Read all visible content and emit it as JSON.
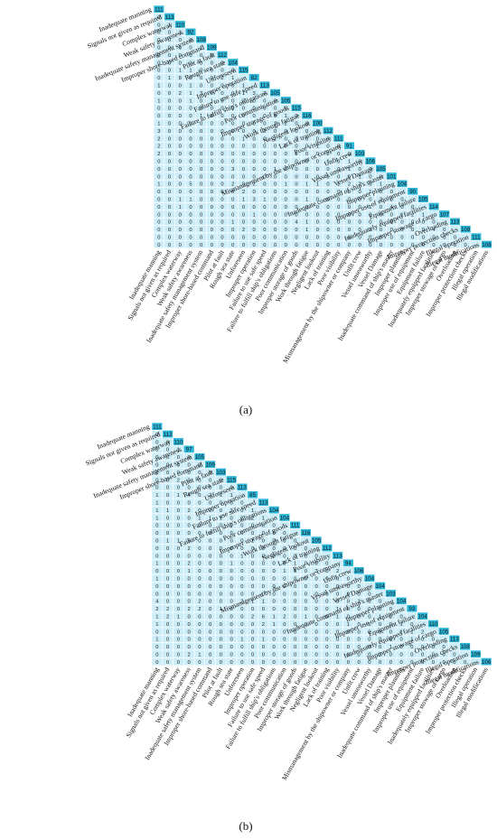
{
  "chart_data": [
    {
      "type": "heatmap",
      "panel_label": "(a)",
      "labels": [
        "Inadequate manning",
        "Signals not given as required",
        "Complex waterway",
        "Weak safety awareness",
        "Inadequate safety management system",
        "Improper shore-based command",
        "Pilot at fault",
        "Rough sea state",
        "Unforeseen",
        "Improper operation",
        "Failure to use safe speed",
        "Failure to fulfill ship's obligations",
        "Poor communication",
        "Improper storage of goods",
        "Work through fatigue",
        "Negligent lookout",
        "Lack of training",
        "Poor visibility",
        "Mismanagement by the shipowner or company",
        "Unfit crew",
        "Vessel unseaworthy",
        "Vessel Damage",
        "Inadequate command of ship's master",
        "Improper planning",
        "Improper use of equipment",
        "Equipment failure",
        "Inadequately equipped facilities",
        "Improper stowage of cargo",
        "Overloading",
        "Improper protection checks",
        "Illegal operation",
        "Illegal modifications"
      ],
      "diagonal": [
        111,
        113,
        110,
        92,
        108,
        109,
        112,
        104,
        115,
        82,
        113,
        105,
        105,
        115,
        116,
        100,
        112,
        111,
        91,
        103,
        106,
        105,
        101,
        104,
        90,
        105,
        114,
        107,
        113,
        109,
        111,
        108
      ],
      "rows": [
        [],
        [
          0
        ],
        [
          0,
          1
        ],
        [
          0,
          0,
          1
        ],
        [
          0,
          0,
          0,
          0
        ],
        [
          0,
          0,
          0,
          0,
          1
        ],
        [
          0,
          0,
          0,
          0,
          0,
          0
        ],
        [
          0,
          0,
          0,
          0,
          0,
          0,
          0
        ],
        [
          0,
          0,
          1,
          1,
          0,
          0,
          0,
          0
        ],
        [
          0,
          1,
          8,
          0,
          0,
          0,
          2,
          1
        ],
        [
          1,
          0,
          0,
          1,
          0,
          0,
          0,
          0,
          1
        ],
        [
          0,
          0,
          2,
          1,
          3,
          0,
          0,
          0,
          1,
          3,
          2
        ],
        [
          1,
          0,
          0,
          1,
          0,
          1,
          0,
          0,
          2,
          0,
          0,
          0
        ],
        [
          0,
          0,
          0,
          0,
          0,
          0,
          0,
          0,
          0,
          0,
          0,
          0,
          0
        ],
        [
          0,
          0,
          0,
          0,
          1,
          0,
          0,
          0,
          0,
          0,
          0,
          0,
          1,
          0
        ],
        [
          1,
          0,
          0,
          0,
          0,
          0,
          0,
          0,
          0,
          0,
          0,
          1,
          2,
          0,
          0
        ],
        [
          3,
          0,
          0,
          0,
          0,
          0,
          0,
          0,
          0,
          0,
          2,
          0,
          0,
          0,
          0,
          0
        ],
        [
          2,
          0,
          0,
          0,
          0,
          0,
          0,
          0,
          1,
          0,
          0,
          1,
          0,
          0,
          0,
          0,
          0
        ],
        [
          2,
          0,
          0,
          0,
          0,
          0,
          0,
          0,
          0,
          0,
          0,
          0,
          0,
          0,
          0,
          1,
          0,
          0
        ],
        [
          2,
          0,
          0,
          0,
          0,
          0,
          0,
          0,
          0,
          0,
          0,
          0,
          0,
          0,
          0,
          0,
          2,
          0,
          0
        ],
        [
          0,
          0,
          0,
          0,
          0,
          0,
          0,
          0,
          0,
          0,
          0,
          0,
          0,
          0,
          0,
          0,
          1,
          0,
          1,
          0
        ],
        [
          0,
          0,
          0,
          0,
          0,
          0,
          0,
          3,
          0,
          0,
          0,
          1,
          0,
          0,
          0,
          0,
          0,
          0,
          1,
          0,
          0
        ],
        [
          0,
          0,
          0,
          0,
          0,
          0,
          0,
          0,
          0,
          0,
          0,
          0,
          0,
          0,
          0,
          0,
          0,
          0,
          0,
          1,
          0,
          0
        ],
        [
          1,
          0,
          0,
          5,
          0,
          0,
          0,
          2,
          0,
          2,
          0,
          0,
          1,
          0,
          1,
          1,
          0,
          1,
          2,
          2,
          0,
          1
        ],
        [
          0,
          0,
          0,
          0,
          0,
          0,
          0,
          0,
          2,
          0,
          0,
          0,
          0,
          0,
          0,
          0,
          0,
          0,
          0,
          0,
          1,
          0,
          0
        ],
        [
          0,
          0,
          1,
          1,
          0,
          0,
          0,
          0,
          1,
          3,
          1,
          0,
          0,
          0,
          1,
          0,
          0,
          0,
          0,
          0,
          0,
          2,
          0,
          0
        ],
        [
          0,
          0,
          1,
          0,
          0,
          0,
          0,
          0,
          0,
          0,
          0,
          0,
          0,
          0,
          0,
          0,
          0,
          0,
          0,
          0,
          1,
          0,
          4,
          0,
          0
        ],
        [
          0,
          0,
          0,
          0,
          0,
          0,
          0,
          0,
          0,
          1,
          0,
          0,
          0,
          0,
          0,
          0,
          0,
          0,
          0,
          0,
          0,
          0,
          0,
          1,
          2,
          1
        ],
        [
          0,
          0,
          0,
          0,
          0,
          0,
          0,
          1,
          0,
          0,
          0,
          0,
          0,
          4,
          1,
          0,
          0,
          0,
          0,
          0,
          0,
          0,
          0,
          0,
          0,
          0,
          0
        ],
        [
          0,
          0,
          0,
          0,
          0,
          0,
          0,
          0,
          2,
          0,
          0,
          0,
          0,
          0,
          1,
          0,
          0,
          0,
          0,
          0,
          1,
          0,
          0,
          0,
          0,
          0,
          4,
          0
        ],
        [
          0,
          0,
          0,
          0,
          0,
          0,
          0,
          0,
          0,
          0,
          0,
          0,
          0,
          0,
          0,
          0,
          0,
          0,
          0,
          0,
          0,
          0,
          0,
          0,
          0,
          0,
          0,
          0,
          0
        ],
        [
          0,
          0,
          0,
          0,
          0,
          0,
          0,
          0,
          0,
          0,
          0,
          0,
          0,
          0,
          0,
          0,
          0,
          0,
          0,
          0,
          0,
          0,
          0,
          0,
          0,
          0,
          0,
          0,
          0,
          0
        ],
        [
          0,
          2,
          0,
          0,
          0,
          0,
          0,
          0,
          0,
          0,
          0,
          0,
          0,
          0,
          0,
          0,
          0,
          0,
          0,
          0,
          0,
          0,
          0,
          0,
          0,
          0,
          0,
          0,
          0,
          0,
          2
        ]
      ]
    },
    {
      "type": "heatmap",
      "panel_label": "(b)",
      "labels": [
        "Inadequate manning",
        "Signals not given as required",
        "Complex waterway",
        "Weak safety awareness",
        "Inadequate safety management system",
        "Improper shore-based command",
        "Pilot at fault",
        "Rough sea state",
        "Unforeseen",
        "Improper operation",
        "Failure to use safe speed",
        "Failure to fulfill ship's obligations",
        "Poor communication",
        "Improper storage of goods",
        "Work through fatigue",
        "Negligent lookout",
        "Lack of training",
        "Poor visibility",
        "Mismanagement by the shipowner or company",
        "Unfit crew",
        "Vessel unseaworthy",
        "Vessel Damage",
        "Inadequate command of ship's master",
        "Improper planning",
        "Improper use of equipment",
        "Equipment failure",
        "Inadequately equipped facilities",
        "Improper stowage of cargo",
        "Overloading",
        "Improper protection checks",
        "Illegal operation",
        "Illegal modifications"
      ],
      "diagonal": [
        111,
        112,
        110,
        97,
        105,
        109,
        103,
        115,
        113,
        85,
        113,
        104,
        104,
        111,
        116,
        105,
        112,
        113,
        94,
        106,
        104,
        104,
        103,
        104,
        93,
        104,
        110,
        105,
        113,
        108,
        109,
        106
      ],
      "rows": [
        [],
        [
          0
        ],
        [
          0,
          0
        ],
        [
          0,
          0,
          1
        ],
        [
          0,
          0,
          0,
          0
        ],
        [
          0,
          0,
          0,
          0,
          0
        ],
        [
          1,
          0,
          0,
          0,
          0,
          0
        ],
        [
          0,
          0,
          2,
          0,
          0,
          0,
          0
        ],
        [
          0,
          0,
          0,
          0,
          0,
          0,
          0,
          0
        ],
        [
          1,
          0,
          1,
          4,
          0,
          2,
          1,
          1
        ],
        [
          1,
          0,
          0,
          0,
          0,
          0,
          0,
          0,
          0
        ],
        [
          1,
          1,
          0,
          2,
          0,
          0,
          0,
          2,
          0,
          1
        ],
        [
          1,
          0,
          0,
          0,
          1,
          1,
          1,
          0,
          2,
          2,
          1
        ],
        [
          0,
          0,
          0,
          0,
          0,
          0,
          0,
          0,
          0,
          0,
          0,
          0
        ],
        [
          0,
          0,
          0,
          0,
          0,
          0,
          0,
          0,
          0,
          0,
          0,
          0,
          0
        ],
        [
          0,
          1,
          1,
          5,
          0,
          0,
          0,
          0,
          0,
          1,
          0,
          0,
          0,
          0
        ],
        [
          0,
          0,
          0,
          2,
          0,
          0,
          0,
          0,
          0,
          0,
          0,
          0,
          0,
          0,
          0
        ],
        [
          0,
          0,
          0,
          0,
          0,
          0,
          0,
          0,
          1,
          0,
          0,
          0,
          0,
          0,
          0,
          0
        ],
        [
          1,
          0,
          0,
          2,
          0,
          0,
          0,
          1,
          0,
          0,
          0,
          0,
          0,
          1,
          0,
          0,
          0
        ],
        [
          0,
          0,
          0,
          1,
          0,
          0,
          0,
          0,
          0,
          0,
          0,
          0,
          1,
          0,
          0,
          3,
          0,
          2
        ],
        [
          1,
          0,
          0,
          0,
          0,
          0,
          0,
          0,
          0,
          0,
          0,
          0,
          0,
          0,
          0,
          0,
          0,
          0,
          0
        ],
        [
          0,
          0,
          0,
          0,
          0,
          0,
          0,
          0,
          0,
          0,
          0,
          0,
          0,
          0,
          0,
          0,
          0,
          0,
          0,
          0
        ],
        [
          0,
          0,
          0,
          0,
          0,
          0,
          0,
          0,
          0,
          0,
          0,
          0,
          0,
          0,
          0,
          0,
          0,
          0,
          0,
          0,
          0
        ],
        [
          4,
          0,
          0,
          0,
          2,
          0,
          0,
          0,
          2,
          1,
          1,
          0,
          0,
          0,
          0,
          0,
          0,
          0,
          0,
          1,
          0,
          0
        ],
        [
          2,
          2,
          0,
          2,
          2,
          0,
          1,
          0,
          0,
          0,
          0,
          0,
          0,
          0,
          0,
          0,
          0,
          1,
          0,
          0,
          0,
          0,
          0
        ],
        [
          1,
          2,
          1,
          0,
          0,
          0,
          0,
          0,
          0,
          2,
          6,
          1,
          2,
          0,
          1,
          0,
          0,
          1,
          0,
          0,
          0,
          1,
          0,
          0
        ],
        [
          1,
          0,
          0,
          0,
          0,
          0,
          0,
          0,
          0,
          0,
          2,
          1,
          0,
          0,
          0,
          0,
          0,
          0,
          1,
          0,
          5,
          0,
          0,
          1,
          0
        ],
        [
          0,
          0,
          0,
          0,
          0,
          0,
          0,
          0,
          0,
          0,
          0,
          0,
          0,
          0,
          0,
          0,
          0,
          0,
          0,
          0,
          0,
          0,
          0,
          1,
          1,
          2
        ],
        [
          1,
          0,
          0,
          0,
          0,
          0,
          0,
          0,
          1,
          0,
          1,
          0,
          0,
          0,
          0,
          0,
          0,
          0,
          0,
          0,
          0,
          0,
          0,
          0,
          1,
          0,
          0
        ],
        [
          0,
          0,
          0,
          0,
          0,
          0,
          0,
          0,
          0,
          0,
          0,
          0,
          0,
          0,
          0,
          0,
          0,
          0,
          0,
          0,
          0,
          0,
          1,
          0,
          0,
          0,
          0,
          0
        ],
        [
          0,
          0,
          0,
          2,
          1,
          0,
          0,
          0,
          0,
          0,
          0,
          0,
          0,
          0,
          0,
          0,
          0,
          0,
          0,
          0,
          0,
          2,
          0,
          0,
          0,
          0,
          0,
          0,
          0
        ],
        [
          0,
          0,
          0,
          0,
          0,
          0,
          0,
          0,
          0,
          0,
          0,
          0,
          0,
          0,
          0,
          0,
          0,
          0,
          0,
          0,
          0,
          0,
          0,
          0,
          0,
          0,
          0,
          0,
          0,
          0
        ],
        [
          0,
          0,
          0,
          0,
          0,
          0,
          0,
          0,
          0,
          0,
          0,
          0,
          0,
          0,
          0,
          0,
          0,
          0,
          0,
          0,
          0,
          0,
          0,
          0,
          0,
          0,
          0,
          0,
          0,
          0,
          3
        ]
      ]
    }
  ],
  "colors": {
    "cell_fill": "#cdeef8",
    "diag_fill": "#2bb6d9",
    "grid_line": "#ffffff",
    "text": "#111111"
  }
}
